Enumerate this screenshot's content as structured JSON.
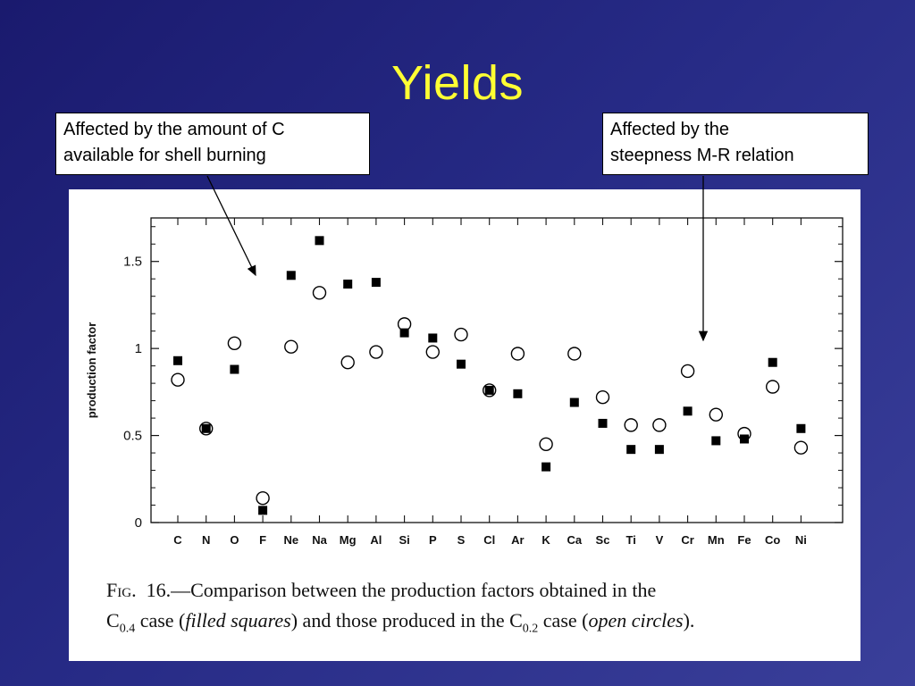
{
  "slide": {
    "title": "Yields"
  },
  "callouts": {
    "left": {
      "lines": [
        "Affected by the amount of C",
        "available for shell burning"
      ]
    },
    "right": {
      "lines": [
        "Affected by the",
        "steepness M-R relation"
      ]
    }
  },
  "caption": {
    "fig_label": "Fig.",
    "line1_rest": "16.—Comparison between the production factors obtained in the",
    "c1_base": "C",
    "c1_sub": "0.4",
    "line2_a": " case (",
    "filled": "filled squares",
    "line2_b": ") and those produced in the ",
    "c2_base": "C",
    "c2_sub": "0.2",
    "line2_c": " case (",
    "open": "open circles",
    "line2_d": ")."
  },
  "chart_data": {
    "type": "scatter",
    "ylabel": "production factor",
    "xlabel": "",
    "ylim": [
      0,
      1.75
    ],
    "yticks": [
      0,
      0.5,
      1,
      1.5
    ],
    "ytick_labels": [
      "0",
      "0.5",
      "1",
      "1.5"
    ],
    "categories": [
      "C",
      "N",
      "O",
      "F",
      "Ne",
      "Na",
      "Mg",
      "Al",
      "Si",
      "P",
      "S",
      "Cl",
      "Ar",
      "K",
      "Ca",
      "Sc",
      "Ti",
      "V",
      "Cr",
      "Mn",
      "Fe",
      "Co",
      "Ni"
    ],
    "series": [
      {
        "marker": "filled-square",
        "values": [
          0.93,
          0.54,
          0.88,
          0.07,
          1.42,
          1.62,
          1.37,
          1.38,
          1.09,
          1.06,
          0.91,
          0.76,
          0.74,
          0.32,
          0.69,
          0.57,
          0.42,
          0.42,
          0.64,
          0.47,
          0.48,
          0.92,
          0.54
        ]
      },
      {
        "marker": "open-circle",
        "values": [
          0.82,
          0.54,
          1.03,
          0.14,
          1.01,
          1.32,
          0.92,
          0.98,
          1.14,
          0.98,
          1.08,
          0.76,
          0.97,
          0.45,
          0.97,
          0.72,
          0.56,
          0.56,
          0.87,
          0.62,
          0.51,
          0.78,
          0.43
        ]
      }
    ],
    "grid": false
  }
}
